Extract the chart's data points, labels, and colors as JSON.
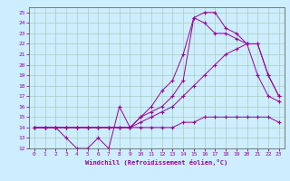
{
  "bg_color": "#cceeff",
  "grid_color": "#aaccbb",
  "line_color": "#990099",
  "xlabel": "Windchill (Refroidissement éolien,°C)",
  "xlim": [
    -0.5,
    23.5
  ],
  "ylim": [
    12,
    25.5
  ],
  "yticks": [
    12,
    13,
    14,
    15,
    16,
    17,
    18,
    19,
    20,
    21,
    22,
    23,
    24,
    25
  ],
  "xticks": [
    0,
    1,
    2,
    3,
    4,
    5,
    6,
    7,
    8,
    9,
    10,
    11,
    12,
    13,
    14,
    15,
    16,
    17,
    18,
    19,
    20,
    21,
    22,
    23
  ],
  "line1_x": [
    0,
    1,
    2,
    3,
    4,
    5,
    6,
    7,
    8,
    9,
    10,
    11,
    12,
    13,
    14,
    15,
    16,
    17,
    18,
    19,
    20,
    21,
    22,
    23
  ],
  "line1_y": [
    14,
    14,
    14,
    13,
    12,
    12,
    13,
    12,
    16,
    14,
    14,
    14,
    14,
    14,
    14.5,
    14.5,
    15,
    15,
    15,
    15,
    15,
    15,
    15,
    14.5
  ],
  "line2_x": [
    0,
    1,
    2,
    3,
    4,
    5,
    6,
    7,
    8,
    9,
    10,
    11,
    12,
    13,
    14,
    15,
    16,
    17,
    18,
    19,
    20,
    21,
    22,
    23
  ],
  "line2_y": [
    14,
    14,
    14,
    14,
    14,
    14,
    14,
    14,
    14,
    14,
    14.5,
    15,
    15.5,
    16,
    17,
    18,
    19,
    20,
    21,
    21.5,
    22,
    22,
    19,
    17
  ],
  "line3_x": [
    0,
    1,
    2,
    3,
    4,
    5,
    6,
    7,
    8,
    9,
    10,
    11,
    12,
    13,
    14,
    15,
    16,
    17,
    18,
    19,
    20,
    21,
    22,
    23
  ],
  "line3_y": [
    14,
    14,
    14,
    14,
    14,
    14,
    14,
    14,
    14,
    14,
    15,
    16,
    17.5,
    18.5,
    21,
    24.5,
    24,
    23,
    23,
    22.5,
    22,
    19,
    17,
    16.5
  ],
  "line4_x": [
    0,
    1,
    2,
    3,
    4,
    5,
    6,
    7,
    8,
    9,
    10,
    11,
    12,
    13,
    14,
    15,
    16,
    17,
    18,
    19,
    20,
    21,
    22,
    23
  ],
  "line4_y": [
    14,
    14,
    14,
    14,
    14,
    14,
    14,
    14,
    14,
    14,
    15,
    15.5,
    16,
    17,
    18.5,
    24.5,
    25,
    25,
    23.5,
    23,
    22,
    22,
    19,
    17
  ]
}
